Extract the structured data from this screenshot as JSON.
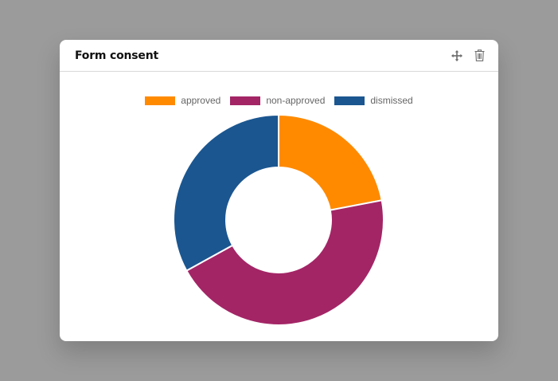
{
  "card": {
    "title": "Form consent",
    "actions": [
      {
        "icon": "move-icon",
        "label": "Move"
      },
      {
        "icon": "trash-icon",
        "label": "Delete"
      }
    ]
  },
  "legend": [
    {
      "label": "approved",
      "color": "#ff8a00"
    },
    {
      "label": "non-approved",
      "color": "#a32566"
    },
    {
      "label": "dismissed",
      "color": "#1b5690"
    }
  ],
  "chart_data": {
    "type": "pie",
    "variant": "doughnut",
    "title": "Form consent",
    "categories": [
      "approved",
      "non-approved",
      "dismissed"
    ],
    "values": [
      22,
      45,
      33
    ],
    "value_note": "estimated from slice angles; no values shown on chart",
    "colors": [
      "#ff8a00",
      "#a32566",
      "#1b5690"
    ],
    "legend_position": "top",
    "start_angle": "12 o'clock, clockwise",
    "cutout_ratio": 0.5
  }
}
